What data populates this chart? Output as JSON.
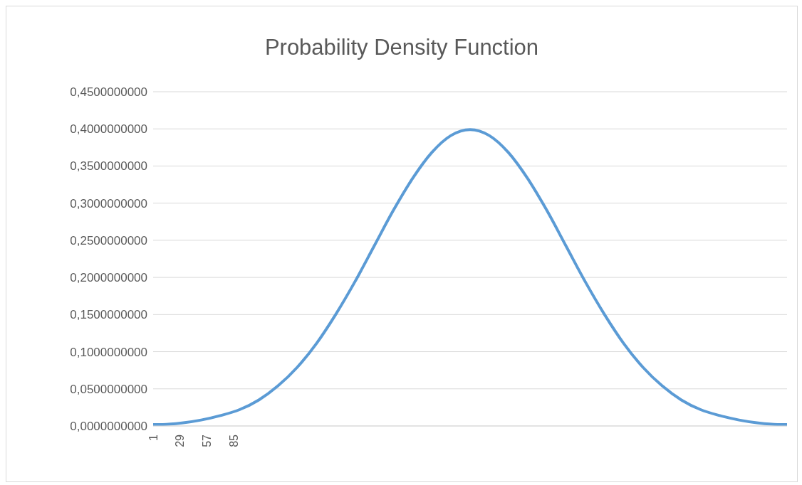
{
  "chart_data": {
    "type": "line",
    "title": "Probability Density Function",
    "x": [
      1,
      11,
      31,
      51,
      71,
      91,
      111,
      131,
      151,
      171,
      191,
      211,
      231,
      251,
      271,
      291,
      311,
      331,
      351,
      371,
      391,
      411,
      431,
      451,
      471,
      491,
      511,
      531,
      551,
      571,
      591,
      611,
      631,
      651,
      661
    ],
    "series": [
      {
        "color": "#5b9bd5",
        "values": [
          0.002,
          0.002,
          0.004,
          0.008,
          0.014,
          0.022,
          0.035,
          0.054,
          0.079,
          0.111,
          0.15,
          0.194,
          0.242,
          0.29,
          0.333,
          0.368,
          0.391,
          0.399,
          0.391,
          0.368,
          0.333,
          0.29,
          0.242,
          0.194,
          0.15,
          0.111,
          0.079,
          0.054,
          0.035,
          0.022,
          0.014,
          0.008,
          0.004,
          0.002,
          0.002
        ]
      }
    ],
    "xlim": [
      1,
      661
    ],
    "xticks": [
      1,
      29,
      57,
      85
    ],
    "ylim": [
      0,
      0.45
    ],
    "yticks": [
      {
        "value": 0,
        "label": "0,0000000000"
      },
      {
        "value": 0.05,
        "label": "0,0500000000"
      },
      {
        "value": 0.1,
        "label": "0,1000000000"
      },
      {
        "value": 0.15,
        "label": "0,1500000000"
      },
      {
        "value": 0.2,
        "label": "0,2000000000"
      },
      {
        "value": 0.25,
        "label": "0,2500000000"
      },
      {
        "value": 0.3,
        "label": "0,3000000000"
      },
      {
        "value": 0.35,
        "label": "0,3500000000"
      },
      {
        "value": 0.4,
        "label": "0,4000000000"
      },
      {
        "value": 0.45,
        "label": "0,4500000000"
      }
    ],
    "grid": "y",
    "legend": false,
    "marker": "none",
    "line_style": "solid"
  }
}
